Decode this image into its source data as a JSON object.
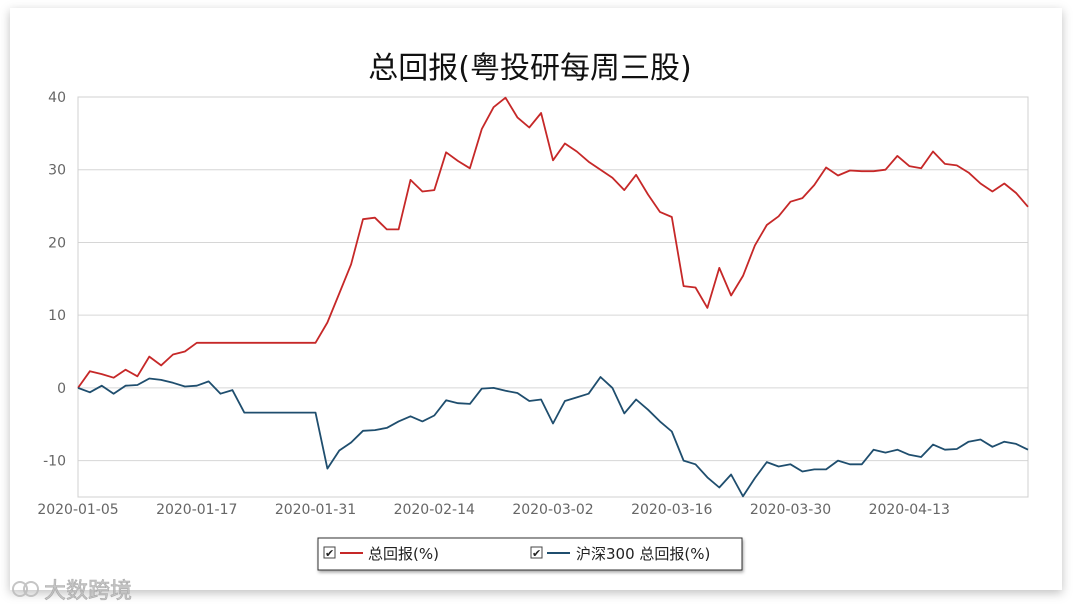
{
  "chart_data": {
    "type": "line",
    "title": "总回报(粤投研每周三股)",
    "ylim": [
      -15,
      40
    ],
    "y_ticks": [
      40,
      30,
      20,
      10,
      0,
      -10
    ],
    "x_tick_labels": [
      "2020-01-05",
      "2020-01-17",
      "2020-01-31",
      "2020-02-14",
      "2020-03-02",
      "2020-03-16",
      "2020-03-30",
      "2020-04-13"
    ],
    "x_tick_index": [
      0,
      10,
      20,
      30,
      40,
      50,
      60,
      70
    ],
    "x_max_index": 80,
    "grid": true,
    "legend_position": "bottom",
    "series": [
      {
        "name": "总回报(%)",
        "color": "#c62828",
        "values": [
          0.0,
          2.3,
          1.9,
          1.4,
          2.5,
          1.6,
          4.3,
          3.1,
          4.6,
          5.0,
          6.2,
          6.2,
          6.2,
          6.2,
          6.2,
          6.2,
          6.2,
          6.2,
          6.2,
          6.2,
          6.2,
          9.0,
          13.0,
          17.0,
          23.2,
          23.4,
          21.8,
          21.8,
          28.6,
          27.0,
          27.2,
          32.4,
          31.2,
          30.2,
          35.6,
          38.6,
          39.9,
          37.2,
          35.8,
          37.8,
          31.3,
          33.6,
          32.5,
          31.1,
          30.0,
          28.9,
          27.2,
          29.3,
          26.6,
          24.2,
          23.5,
          14.0,
          13.8,
          11.0,
          16.5,
          12.7,
          15.4,
          19.6,
          22.4,
          23.6,
          25.6,
          26.1,
          27.9,
          30.3,
          29.2,
          29.9,
          29.8,
          29.8,
          30.0,
          31.9,
          30.5,
          30.2,
          32.5,
          30.8,
          30.6,
          29.6,
          28.1,
          27.0,
          28.1,
          26.8,
          24.9
        ]
      },
      {
        "name": "沪深300 总回报(%)",
        "color": "#1f4e6e",
        "values": [
          0.0,
          -0.6,
          0.3,
          -0.8,
          0.3,
          0.4,
          1.3,
          1.1,
          0.7,
          0.2,
          0.3,
          0.9,
          -0.8,
          -0.3,
          -3.4,
          -3.4,
          -3.4,
          -3.4,
          -3.4,
          -3.4,
          -3.4,
          -11.1,
          -8.6,
          -7.5,
          -5.9,
          -5.8,
          -5.5,
          -4.6,
          -3.9,
          -4.6,
          -3.8,
          -1.7,
          -2.1,
          -2.2,
          -0.1,
          0.0,
          -0.4,
          -0.7,
          -1.8,
          -1.6,
          -4.9,
          -1.8,
          -1.3,
          -0.8,
          1.5,
          0.0,
          -3.5,
          -1.6,
          -3.0,
          -4.6,
          -6.0,
          -10.0,
          -10.5,
          -12.3,
          -13.7,
          -11.9,
          -14.9,
          -12.4,
          -10.2,
          -10.8,
          -10.5,
          -11.5,
          -11.2,
          -11.2,
          -10.0,
          -10.5,
          -10.5,
          -8.5,
          -8.9,
          -8.5,
          -9.2,
          -9.5,
          -7.8,
          -8.5,
          -8.4,
          -7.4,
          -7.1,
          -8.1,
          -7.4,
          -7.7,
          -8.5
        ]
      }
    ]
  },
  "watermark": {
    "text": "大数跨境"
  }
}
